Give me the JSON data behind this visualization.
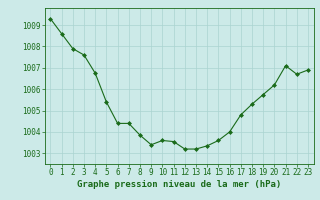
{
  "x": [
    0,
    1,
    2,
    3,
    4,
    5,
    6,
    7,
    8,
    9,
    10,
    11,
    12,
    13,
    14,
    15,
    16,
    17,
    18,
    19,
    20,
    21,
    22,
    23
  ],
  "y": [
    1009.3,
    1008.6,
    1007.9,
    1007.6,
    1006.75,
    1005.4,
    1004.4,
    1004.4,
    1003.85,
    1003.4,
    1003.6,
    1003.55,
    1003.2,
    1003.2,
    1003.35,
    1003.6,
    1004.0,
    1004.8,
    1005.3,
    1005.75,
    1006.2,
    1007.1,
    1006.7,
    1006.9
  ],
  "line_color": "#1a6b1a",
  "marker": "D",
  "marker_size": 2.0,
  "bg_color": "#cceae8",
  "grid_color": "#aad4d0",
  "ylabel_ticks": [
    1003,
    1004,
    1005,
    1006,
    1007,
    1008,
    1009
  ],
  "ylim": [
    1002.5,
    1009.8
  ],
  "xlim": [
    -0.5,
    23.5
  ],
  "xlabel_label": "Graphe pression niveau de la mer (hPa)",
  "xlabel_fontsize": 6.5,
  "tick_fontsize": 5.5,
  "xlabel_color": "#1a6b1a",
  "tick_color": "#1a6b1a",
  "axis_color": "#1a6b1a",
  "line_width": 0.8
}
